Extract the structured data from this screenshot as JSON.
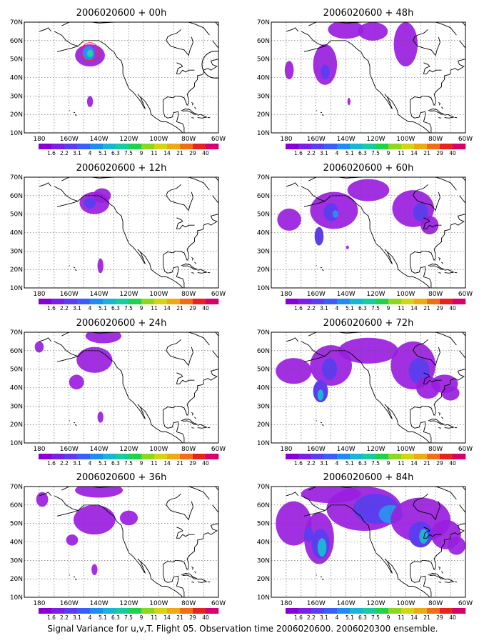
{
  "caption": "Signal Variance for u,v,T. Flight 05. Observation time 2006020600. 2006020300 ensemble.",
  "lat_labels": [
    "70N",
    "60N",
    "50N",
    "40N",
    "30N",
    "20N",
    "10N"
  ],
  "lon_labels": [
    "180",
    "160W",
    "140W",
    "120W",
    "100W",
    "80W",
    "60W"
  ],
  "colorbar": {
    "labels": [
      "1.6",
      "2.2",
      "3.1",
      "4",
      "5.1",
      "6.3",
      "7.5",
      "9",
      "11",
      "14",
      "21",
      "29",
      "40"
    ],
    "colors": [
      "#8a00d4",
      "#7a1ee8",
      "#5d3cf2",
      "#3b5ef6",
      "#1e8cf0",
      "#1ab4d6",
      "#18cca0",
      "#20d24a",
      "#8cd81e",
      "#d2d414",
      "#ecab12",
      "#f06e16",
      "#e8221e",
      "#d8006e"
    ]
  },
  "panels": [
    {
      "title": "2006020600 + 00h",
      "blobs": [
        [
          -146,
          52,
          10,
          6,
          0
        ],
        [
          -147,
          53,
          4,
          4,
          2
        ],
        [
          -146,
          53,
          2,
          2,
          4
        ],
        [
          -146,
          27,
          2,
          3,
          0
        ]
      ],
      "circles": [
        {
          "lon": -146,
          "lat": 54,
          "r": 6,
          "color": "#ff2020"
        },
        {
          "lon": -62,
          "lat": 47,
          "r": 9,
          "color": "#000000"
        }
      ]
    },
    {
      "title": "2006020600 + 48h",
      "blobs": [
        [
          -178,
          44,
          3,
          5,
          0
        ],
        [
          -154,
          47,
          8,
          11,
          0
        ],
        [
          -154,
          43,
          3,
          4,
          1
        ],
        [
          -140,
          66,
          12,
          5,
          0
        ],
        [
          -122,
          65,
          10,
          5,
          0
        ],
        [
          -100,
          58,
          8,
          12,
          0
        ],
        [
          -138,
          27,
          1,
          2,
          0
        ]
      ],
      "circles": []
    },
    {
      "title": "2006020600 + 12h",
      "blobs": [
        [
          -143,
          56,
          10,
          6,
          0
        ],
        [
          -146,
          56,
          4,
          3,
          1
        ],
        [
          -139,
          22,
          2,
          4,
          0
        ],
        [
          -138,
          60,
          6,
          4,
          0
        ]
      ],
      "circles": []
    },
    {
      "title": "2006020600 + 60h",
      "blobs": [
        [
          -178,
          47,
          8,
          6,
          0
        ],
        [
          -148,
          52,
          16,
          10,
          0
        ],
        [
          -150,
          51,
          5,
          5,
          1
        ],
        [
          -147,
          50,
          2,
          2,
          2
        ],
        [
          -158,
          38,
          3,
          5,
          1
        ],
        [
          -125,
          63,
          14,
          6,
          0
        ],
        [
          -95,
          53,
          14,
          10,
          0
        ],
        [
          -90,
          51,
          5,
          5,
          1
        ],
        [
          -84,
          44,
          6,
          5,
          0
        ],
        [
          -139,
          32,
          1,
          1,
          0
        ]
      ],
      "circles": []
    },
    {
      "title": "2006020600 + 24h",
      "blobs": [
        [
          -180,
          62,
          3,
          3,
          0
        ],
        [
          -143,
          55,
          12,
          7,
          0
        ],
        [
          -155,
          43,
          5,
          4,
          0
        ],
        [
          -137,
          68,
          12,
          4,
          0
        ],
        [
          -139,
          24,
          2,
          3,
          0
        ]
      ],
      "circles": []
    },
    {
      "title": "2006020600 + 72h",
      "blobs": [
        [
          -175,
          49,
          12,
          7,
          0
        ],
        [
          -150,
          52,
          14,
          11,
          0
        ],
        [
          -151,
          50,
          5,
          6,
          1
        ],
        [
          -157,
          38,
          5,
          6,
          1
        ],
        [
          -157,
          36,
          2,
          3,
          3
        ],
        [
          -125,
          60,
          20,
          7,
          0
        ],
        [
          -95,
          52,
          15,
          13,
          0
        ],
        [
          -91,
          49,
          7,
          7,
          1
        ],
        [
          -74,
          42,
          9,
          5,
          0
        ],
        [
          -70,
          37,
          6,
          4,
          0
        ],
        [
          -85,
          40,
          8,
          6,
          0
        ]
      ],
      "circles": []
    },
    {
      "title": "2006020600 + 36h",
      "blobs": [
        [
          -178,
          63,
          4,
          4,
          0
        ],
        [
          -143,
          52,
          14,
          8,
          0
        ],
        [
          -158,
          41,
          4,
          3,
          0
        ],
        [
          -140,
          68,
          16,
          4,
          0
        ],
        [
          -120,
          53,
          6,
          4,
          0
        ],
        [
          -143,
          25,
          2,
          3,
          0
        ]
      ],
      "circles": []
    },
    {
      "title": "2006020600 + 84h",
      "blobs": [
        [
          -175,
          50,
          12,
          12,
          0
        ],
        [
          -158,
          42,
          10,
          14,
          0
        ],
        [
          -157,
          39,
          6,
          8,
          1
        ],
        [
          -156,
          37,
          3,
          5,
          3
        ],
        [
          -165,
          44,
          3,
          4,
          1
        ],
        [
          -128,
          58,
          25,
          12,
          0
        ],
        [
          -120,
          58,
          15,
          8,
          1
        ],
        [
          -110,
          55,
          8,
          5,
          2
        ],
        [
          -90,
          52,
          20,
          12,
          0
        ],
        [
          -90,
          44,
          8,
          7,
          1
        ],
        [
          -88,
          43,
          3,
          4,
          3
        ],
        [
          -73,
          44,
          10,
          8,
          0
        ],
        [
          -66,
          38,
          6,
          5,
          0
        ],
        [
          -150,
          66,
          20,
          5,
          0
        ]
      ],
      "circles": []
    }
  ]
}
